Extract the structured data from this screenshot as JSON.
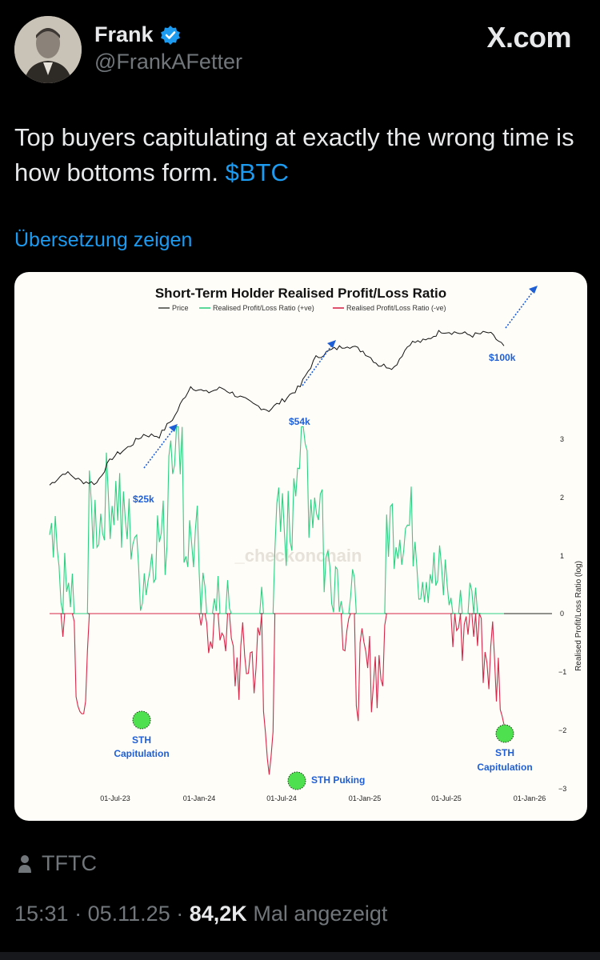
{
  "post": {
    "author_name": "Frank",
    "author_handle": "@FrankAFetter",
    "brand": "X.com",
    "text_main": "Top buyers capitulating at exactly the wrong time is how bottoms form.",
    "cashtag": "$BTC",
    "translate_label": "Übersetzung zeigen",
    "source_label": "TFTC",
    "time": "15:31",
    "date": "05.11.25",
    "separator": "·",
    "views_count": "84,2K",
    "views_label": "Mal angezeigt"
  },
  "colors": {
    "link": "#1d9bf0",
    "green": "#2fcf83",
    "red": "#d6274a",
    "annotation_blue": "#1f5fd6"
  },
  "chart_data": {
    "type": "line",
    "title": "Short-Term Holder Realised Profit/Loss Ratio",
    "legend": [
      "Price",
      "Realised Profit/Loss Ratio (+ve)",
      "Realised Profit/Loss Ratio (-ve)"
    ],
    "ylabel": "Realised Profit/Loss Ratio (log)",
    "ylim": [
      -3,
      3
    ],
    "yticks": [
      "3",
      "2",
      "1",
      "0",
      "−1",
      "−2",
      "−3"
    ],
    "xticks": [
      "01-Jul-23",
      "01-Jan-24",
      "01-Jul-24",
      "01-Jan-25",
      "01-Jul-25",
      "01-Jan-26"
    ],
    "watermark": "_checkonchain",
    "price_annotations": [
      "$25k",
      "$54k",
      "$100k"
    ],
    "capitulation_labels": [
      {
        "line1": "STH",
        "line2": "Capitulation"
      },
      {
        "line1": "STH Puking",
        "line2": ""
      },
      {
        "line1": "STH",
        "line2": "Capitulation"
      }
    ],
    "price_series": [
      [
        "2023-06",
        26000
      ],
      [
        "2023-07",
        29500
      ],
      [
        "2023-08",
        27000
      ],
      [
        "2023-09",
        26500
      ],
      [
        "2023-10",
        34000
      ],
      [
        "2023-11",
        37500
      ],
      [
        "2023-12",
        42500
      ],
      [
        "2024-01",
        42000
      ],
      [
        "2024-02",
        51000
      ],
      [
        "2024-03",
        68000
      ],
      [
        "2024-04",
        64000
      ],
      [
        "2024-05",
        67000
      ],
      [
        "2024-06",
        62000
      ],
      [
        "2024-07",
        57000
      ],
      [
        "2024-08",
        54000
      ],
      [
        "2024-09",
        60000
      ],
      [
        "2024-10",
        68000
      ],
      [
        "2024-11",
        90000
      ],
      [
        "2024-12",
        97000
      ],
      [
        "2025-01",
        102000
      ],
      [
        "2025-02",
        96000
      ],
      [
        "2025-03",
        84000
      ],
      [
        "2025-04",
        82000
      ],
      [
        "2025-05",
        104000
      ],
      [
        "2025-06",
        106000
      ],
      [
        "2025-07",
        117000
      ],
      [
        "2025-08",
        115000
      ],
      [
        "2025-09",
        112000
      ],
      [
        "2025-10",
        115000
      ],
      [
        "2025-11",
        101000
      ]
    ],
    "ratio_extremes": [
      {
        "date": "2023-08",
        "value": -1.8
      },
      {
        "date": "2024-08",
        "value": -2.8
      },
      {
        "date": "2025-11",
        "value": -1.9
      }
    ]
  }
}
